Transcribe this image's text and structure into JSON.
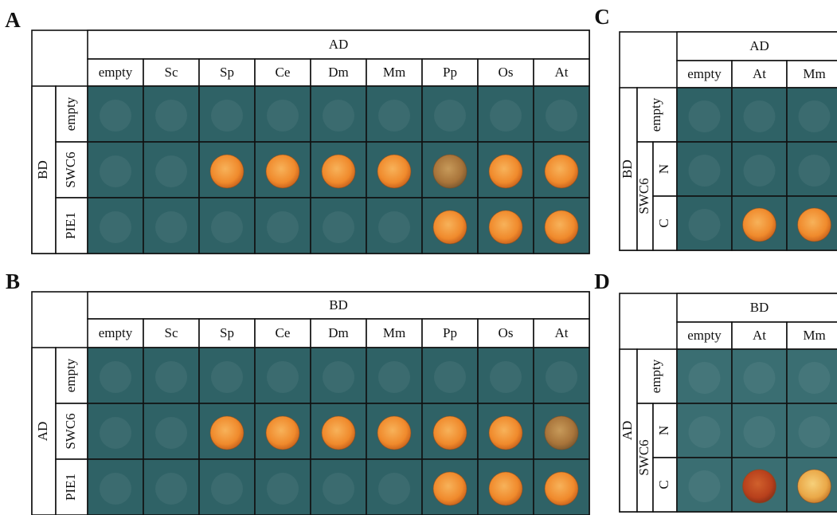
{
  "panels": [
    {
      "label": "A",
      "column_header": "AD",
      "columns": [
        "empty",
        "Sc",
        "Sp",
        "Ce",
        "Dm",
        "Mm",
        "Pp",
        "Os",
        "At"
      ],
      "row_header": "BD",
      "rows": [
        "empty",
        "SWC6",
        "PIE1"
      ]
    },
    {
      "label": "B",
      "column_header": "BD",
      "columns": [
        "empty",
        "Sc",
        "Sp",
        "Ce",
        "Dm",
        "Mm",
        "Pp",
        "Os",
        "At"
      ],
      "row_header": "AD",
      "rows": [
        "empty",
        "SWC6",
        "PIE1"
      ]
    },
    {
      "label": "C",
      "column_header": "AD",
      "columns": [
        "empty",
        "At",
        "Mm"
      ],
      "row_header": "BD",
      "rows": [
        "empty"
      ],
      "group": {
        "label": "SWC6",
        "rows": [
          "N",
          "C"
        ]
      }
    },
    {
      "label": "D",
      "column_header": "BD",
      "columns": [
        "empty",
        "At",
        "Mm"
      ],
      "row_header": "AD",
      "rows": [
        "empty"
      ],
      "group": {
        "label": "SWC6",
        "rows": [
          "N",
          "C"
        ]
      }
    }
  ]
}
